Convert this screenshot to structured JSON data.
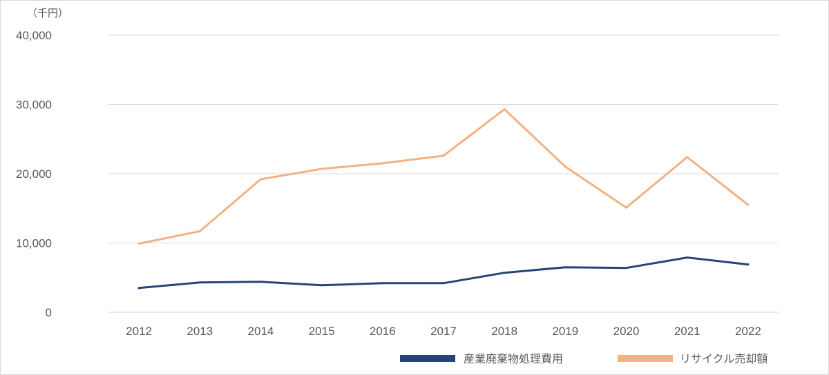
{
  "chart_data": {
    "type": "line",
    "unit_label": "（千円）",
    "categories": [
      "2012",
      "2013",
      "2014",
      "2015",
      "2016",
      "2017",
      "2018",
      "2019",
      "2020",
      "2021",
      "2022"
    ],
    "ylim": [
      0,
      40000
    ],
    "yticks": [
      0,
      10000,
      20000,
      30000,
      40000
    ],
    "ytick_labels": [
      "0",
      "10,000",
      "20,000",
      "30,000",
      "40,000"
    ],
    "grid": true,
    "legend_position": "bottom-right",
    "series": [
      {
        "name": "産業廃棄物処理費用",
        "color": "#264478",
        "values": [
          3500,
          4300,
          4400,
          3900,
          4200,
          4200,
          5700,
          6500,
          6400,
          7900,
          6900
        ]
      },
      {
        "name": "リサイクル売却額",
        "color": "#F4B183",
        "values": [
          9900,
          11700,
          19200,
          20700,
          21500,
          22600,
          29300,
          21000,
          15100,
          22400,
          15500
        ]
      }
    ]
  }
}
